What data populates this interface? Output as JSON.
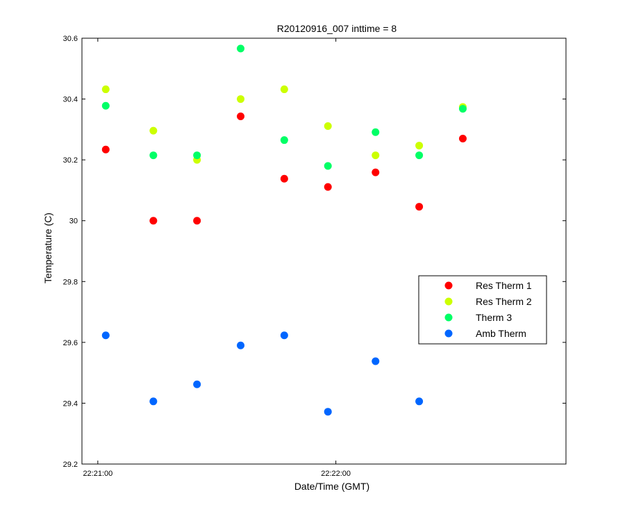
{
  "chart_data": {
    "type": "scatter",
    "title": "R20120916_007 inttime = 8",
    "xlabel": "Date/Time (GMT)",
    "ylabel": "Temperature (C)",
    "x_axis": "time",
    "xlim": [
      "22:20:56",
      "22:22:58"
    ],
    "ylim": [
      29.2,
      30.6
    ],
    "xticks": [
      "22:21:00",
      "22:22:00"
    ],
    "yticks": [
      29.2,
      29.4,
      29.6,
      29.8,
      30,
      30.2,
      30.4,
      30.6
    ],
    "ytick_labels": [
      "29.2",
      "29.4",
      "29.6",
      "29.8",
      "30",
      "30.2",
      "30.4",
      "30.6"
    ],
    "grid": false,
    "legend_position": "right",
    "x": [
      "22:21:02",
      "22:21:14",
      "22:21:25",
      "22:21:36",
      "22:21:47",
      "22:21:58",
      "22:22:10",
      "22:22:21",
      "22:22:32"
    ],
    "series": [
      {
        "name": "Res Therm 1",
        "color": "#ff0000",
        "values": [
          30.234,
          30.0,
          30.0,
          30.343,
          30.138,
          30.111,
          30.159,
          30.046,
          30.27
        ]
      },
      {
        "name": "Res Therm 2",
        "color": "#ccff00",
        "values": [
          30.432,
          30.296,
          30.2,
          30.4,
          30.432,
          30.311,
          30.215,
          30.247,
          30.374
        ]
      },
      {
        "name": "Therm 3",
        "color": "#00ff66",
        "values": [
          30.378,
          30.215,
          30.215,
          30.566,
          30.265,
          30.18,
          30.291,
          30.215,
          30.368
        ]
      },
      {
        "name": "Amb Therm",
        "color": "#0066ff",
        "values": [
          29.623,
          29.406,
          29.462,
          29.59,
          29.623,
          29.372,
          29.538,
          29.406,
          null
        ]
      }
    ]
  }
}
